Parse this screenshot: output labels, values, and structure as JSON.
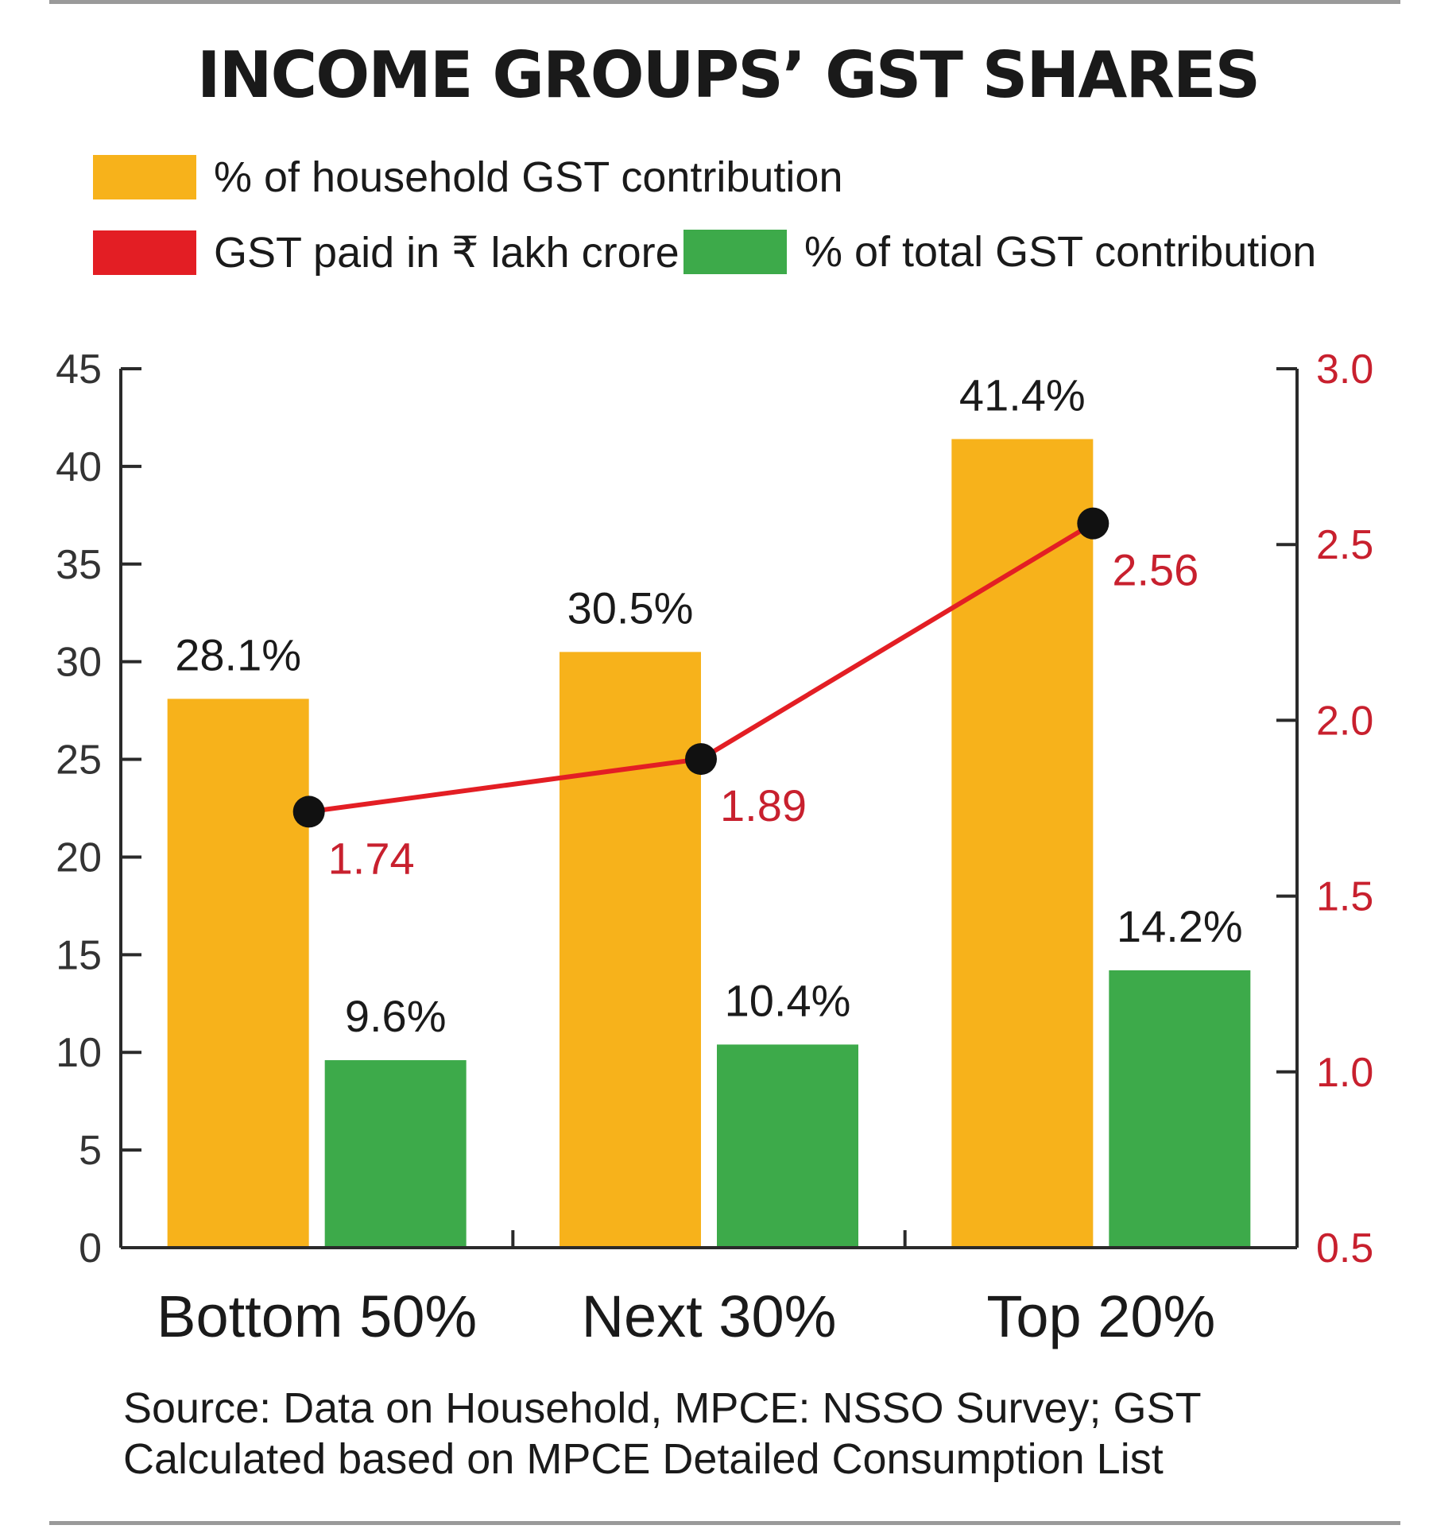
{
  "title": "INCOME GROUPS’ GST SHARES",
  "legend": [
    {
      "label": "% of household GST contribution",
      "color": "#F7B21B"
    },
    {
      "label": "GST paid in ₹ lakh crore",
      "color": "#E31E24"
    },
    {
      "label": "% of total GST contribution",
      "color": "#3DAA4A"
    }
  ],
  "chart_data": {
    "type": "bar",
    "categories": [
      "Bottom 50%",
      "Next 30%",
      "Top 20%"
    ],
    "series": [
      {
        "name": "% of household GST contribution",
        "type": "bar",
        "axis": "left",
        "color": "#F7B21B",
        "values": [
          28.1,
          30.5,
          41.4
        ],
        "labels": [
          "28.1%",
          "30.5%",
          "41.4%"
        ]
      },
      {
        "name": "% of total GST contribution",
        "type": "bar",
        "axis": "left",
        "color": "#3DAA4A",
        "values": [
          9.6,
          10.4,
          14.2
        ],
        "labels": [
          "9.6%",
          "10.4%",
          "14.2%"
        ]
      },
      {
        "name": "GST paid in ₹ lakh crore",
        "type": "line",
        "axis": "right",
        "color": "#E31E24",
        "values": [
          1.74,
          1.89,
          2.56
        ],
        "labels": [
          "1.74",
          "1.89",
          "2.56"
        ]
      }
    ],
    "y_left": {
      "lim": [
        0,
        45
      ],
      "ticks": [
        "0",
        "5",
        "10",
        "15",
        "20",
        "25",
        "30",
        "35",
        "40",
        "45"
      ]
    },
    "y_right": {
      "lim": [
        0.5,
        3.0
      ],
      "ticks": [
        "0.5",
        "1.0",
        "1.5",
        "2.0",
        "2.5",
        "3.0"
      ],
      "color": "#C8202E"
    },
    "grid": false
  },
  "source": "Source: Data on Household, MPCE: NSSO Survey; GST Calculated based on MPCE Detailed Consumption List"
}
